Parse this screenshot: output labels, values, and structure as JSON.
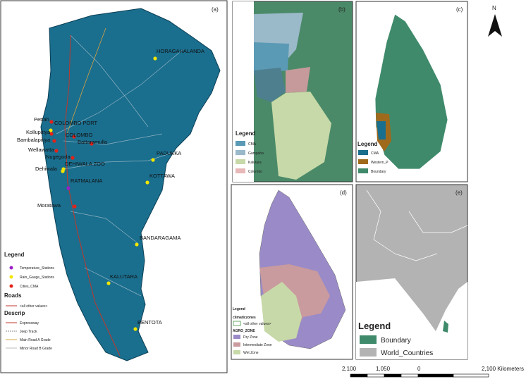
{
  "panel_a": {
    "label": "(a)",
    "places": [
      "HORAGAHALANDA",
      "COLOMBO PORT",
      "Pettah",
      "Kollupitiya",
      "COLOMBO",
      "Bambalapitiya",
      "Battaramulla",
      "Wellawatta",
      "Nugegoda",
      "DEHIWALA ZOO",
      "Dehiwala",
      "PADUKKA",
      "KOTTAWA",
      "RATMALANA",
      "Moratuwa",
      "BANDARAGAMA",
      "KALUTARA",
      "BENTOTA"
    ],
    "legend": {
      "title": "Legend",
      "items": [
        "Temperature_Stations",
        "Rain_Gauge_Stations",
        "Cities_CMA"
      ],
      "roads_title": "Roads",
      "roads_other": "<all other values>",
      "descrip_title": "Descrip",
      "descrip_items": [
        "Expressway",
        "Jeep Track",
        "Main Road A Grade",
        "Minor Road B Grade"
      ]
    }
  },
  "panel_b": {
    "label": "(b)",
    "legend": {
      "title": "Legend",
      "items": [
        "CMA",
        "Gampaha",
        "Kalutara",
        "Colombo"
      ]
    }
  },
  "panel_c": {
    "label": "(c)",
    "legend": {
      "title": "Legend",
      "items": [
        "CMA",
        "Western_P",
        "Boundary"
      ]
    }
  },
  "north": "N",
  "panel_d": {
    "label": "(d)",
    "legend": {
      "title": "Legend",
      "layer": "climaticzones",
      "other": "<all other values>",
      "field": "AGRO_ZONE",
      "items": [
        "Dry Zone",
        "Intermediate Zone",
        "Wet Zone"
      ]
    }
  },
  "panel_e": {
    "label": "(e)",
    "legend": {
      "title": "Legend",
      "items": [
        "Boundary",
        "World_Countries"
      ]
    }
  },
  "scale_bar": {
    "labels": [
      "2,100",
      "1,050",
      "0",
      "2,100 Kilometers"
    ]
  }
}
